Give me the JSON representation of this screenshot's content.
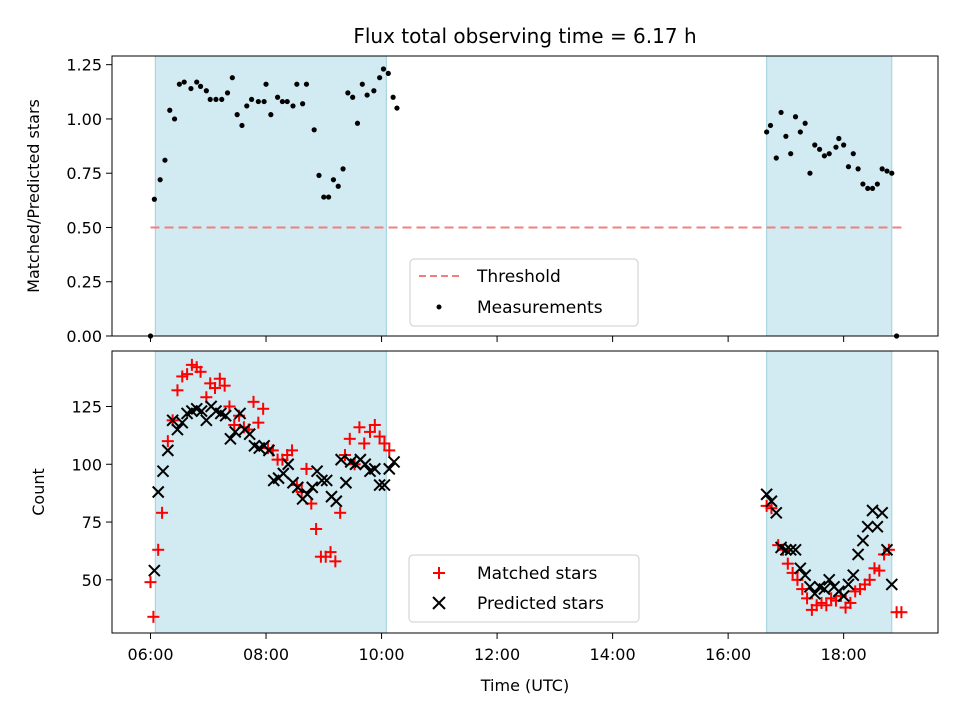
{
  "chart_data": [
    {
      "type": "scatter",
      "title": "Flux total observing time = 6.17 h",
      "xlabel": "",
      "ylabel": "Matched/Predicted stars",
      "xlim": [
        "05:20",
        "19:38"
      ],
      "ylim": [
        0,
        1.29
      ],
      "yticks": [
        0.0,
        0.25,
        0.5,
        0.75,
        1.0,
        1.25
      ],
      "yticklabels": [
        "0.00",
        "0.25",
        "0.50",
        "0.75",
        "1.00",
        "1.25"
      ],
      "shaded_intervals": [
        [
          "06:05",
          "10:05"
        ],
        [
          "16:40",
          "18:50"
        ]
      ],
      "threshold": {
        "name": "Threshold",
        "value": 0.5,
        "color": "#f08080"
      },
      "legend_placement": "lower-center",
      "series": [
        {
          "name": "Measurements",
          "color": "#000000",
          "marker": "dot",
          "points": [
            [
              "06:00",
              0.0
            ],
            [
              "06:04",
              0.63
            ],
            [
              "06:10",
              0.72
            ],
            [
              "06:15",
              0.81
            ],
            [
              "06:20",
              1.04
            ],
            [
              "06:25",
              1.0
            ],
            [
              "06:30",
              1.16
            ],
            [
              "06:35",
              1.17
            ],
            [
              "06:42",
              1.14
            ],
            [
              "06:48",
              1.17
            ],
            [
              "06:52",
              1.15
            ],
            [
              "06:58",
              1.13
            ],
            [
              "07:02",
              1.09
            ],
            [
              "07:08",
              1.09
            ],
            [
              "07:14",
              1.09
            ],
            [
              "07:20",
              1.12
            ],
            [
              "07:25",
              1.19
            ],
            [
              "07:30",
              1.02
            ],
            [
              "07:35",
              0.97
            ],
            [
              "07:40",
              1.06
            ],
            [
              "07:45",
              1.09
            ],
            [
              "07:52",
              1.08
            ],
            [
              "07:58",
              1.08
            ],
            [
              "08:00",
              1.16
            ],
            [
              "08:05",
              1.02
            ],
            [
              "08:12",
              1.1
            ],
            [
              "08:17",
              1.08
            ],
            [
              "08:22",
              1.08
            ],
            [
              "08:28",
              1.06
            ],
            [
              "08:32",
              1.16
            ],
            [
              "08:38",
              1.07
            ],
            [
              "08:42",
              1.16
            ],
            [
              "08:50",
              0.95
            ],
            [
              "08:55",
              0.74
            ],
            [
              "09:00",
              0.64
            ],
            [
              "09:05",
              0.64
            ],
            [
              "09:10",
              0.72
            ],
            [
              "09:15",
              0.69
            ],
            [
              "09:20",
              0.77
            ],
            [
              "09:25",
              1.12
            ],
            [
              "09:30",
              1.1
            ],
            [
              "09:35",
              0.98
            ],
            [
              "09:40",
              1.16
            ],
            [
              "09:45",
              1.11
            ],
            [
              "09:52",
              1.13
            ],
            [
              "09:58",
              1.19
            ],
            [
              "10:02",
              1.23
            ],
            [
              "10:07",
              1.21
            ],
            [
              "10:12",
              1.1
            ],
            [
              "10:16",
              1.05
            ],
            [
              "16:40",
              0.94
            ],
            [
              "16:44",
              0.97
            ],
            [
              "16:50",
              0.82
            ],
            [
              "16:55",
              1.03
            ],
            [
              "17:00",
              0.92
            ],
            [
              "17:05",
              0.84
            ],
            [
              "17:10",
              1.01
            ],
            [
              "17:15",
              0.94
            ],
            [
              "17:20",
              0.98
            ],
            [
              "17:25",
              0.75
            ],
            [
              "17:30",
              0.88
            ],
            [
              "17:35",
              0.86
            ],
            [
              "17:40",
              0.83
            ],
            [
              "17:45",
              0.84
            ],
            [
              "17:52",
              0.87
            ],
            [
              "17:55",
              0.91
            ],
            [
              "18:00",
              0.88
            ],
            [
              "18:05",
              0.78
            ],
            [
              "18:10",
              0.84
            ],
            [
              "18:15",
              0.77
            ],
            [
              "18:20",
              0.7
            ],
            [
              "18:25",
              0.68
            ],
            [
              "18:30",
              0.68
            ],
            [
              "18:35",
              0.7
            ],
            [
              "18:40",
              0.77
            ],
            [
              "18:45",
              0.76
            ],
            [
              "18:50",
              0.75
            ],
            [
              "18:55",
              0.0
            ]
          ]
        }
      ]
    },
    {
      "type": "scatter",
      "title": "",
      "xlabel": "Time (UTC)",
      "ylabel": "Count",
      "xlim": [
        "05:20",
        "19:38"
      ],
      "ylim": [
        27,
        149
      ],
      "yticks": [
        50,
        75,
        100,
        125
      ],
      "xticks": [
        "06:00",
        "08:00",
        "10:00",
        "12:00",
        "14:00",
        "16:00",
        "18:00"
      ],
      "shaded_intervals": [
        [
          "06:05",
          "10:05"
        ],
        [
          "16:40",
          "18:50"
        ]
      ],
      "legend_placement": "lower-center",
      "series": [
        {
          "name": "Matched stars",
          "color": "#ff0000",
          "marker": "plus",
          "points": [
            [
              "06:00",
              49
            ],
            [
              "06:03",
              34
            ],
            [
              "06:08",
              63
            ],
            [
              "06:12",
              79
            ],
            [
              "06:18",
              110
            ],
            [
              "06:23",
              119
            ],
            [
              "06:28",
              132
            ],
            [
              "06:33",
              138
            ],
            [
              "06:38",
              139
            ],
            [
              "06:43",
              143
            ],
            [
              "06:48",
              142
            ],
            [
              "06:52",
              140
            ],
            [
              "06:58",
              129
            ],
            [
              "07:02",
              135
            ],
            [
              "07:07",
              133
            ],
            [
              "07:12",
              137
            ],
            [
              "07:17",
              134
            ],
            [
              "07:22",
              125
            ],
            [
              "07:27",
              117
            ],
            [
              "07:32",
              121
            ],
            [
              "07:37",
              116
            ],
            [
              "07:42",
              115
            ],
            [
              "07:47",
              127
            ],
            [
              "07:52",
              118
            ],
            [
              "07:57",
              124
            ],
            [
              "08:02",
              107
            ],
            [
              "08:07",
              106
            ],
            [
              "08:12",
              102
            ],
            [
              "08:17",
              102
            ],
            [
              "08:22",
              104
            ],
            [
              "08:27",
              106
            ],
            [
              "08:32",
              91
            ],
            [
              "08:37",
              88
            ],
            [
              "08:42",
              98
            ],
            [
              "08:47",
              83
            ],
            [
              "08:52",
              72
            ],
            [
              "08:57",
              60
            ],
            [
              "09:02",
              60
            ],
            [
              "09:07",
              62
            ],
            [
              "09:12",
              58
            ],
            [
              "09:17",
              79
            ],
            [
              "09:22",
              104
            ],
            [
              "09:27",
              111
            ],
            [
              "09:32",
              100
            ],
            [
              "09:37",
              116
            ],
            [
              "09:42",
              109
            ],
            [
              "09:48",
              114
            ],
            [
              "09:53",
              117
            ],
            [
              "09:58",
              112
            ],
            [
              "10:03",
              109
            ],
            [
              "10:08",
              106
            ],
            [
              "16:40",
              82
            ],
            [
              "16:45",
              81
            ],
            [
              "16:52",
              65
            ],
            [
              "16:57",
              63
            ],
            [
              "17:02",
              57
            ],
            [
              "17:07",
              53
            ],
            [
              "17:12",
              50
            ],
            [
              "17:17",
              46
            ],
            [
              "17:22",
              42
            ],
            [
              "17:27",
              37
            ],
            [
              "17:32",
              39
            ],
            [
              "17:37",
              40
            ],
            [
              "17:42",
              39
            ],
            [
              "17:47",
              42
            ],
            [
              "17:52",
              41
            ],
            [
              "17:57",
              43
            ],
            [
              "18:02",
              38
            ],
            [
              "18:07",
              40
            ],
            [
              "18:12",
              45
            ],
            [
              "18:17",
              46
            ],
            [
              "18:22",
              48
            ],
            [
              "18:27",
              50
            ],
            [
              "18:32",
              55
            ],
            [
              "18:37",
              54
            ],
            [
              "18:42",
              61
            ],
            [
              "18:47",
              63
            ],
            [
              "18:55",
              36
            ],
            [
              "19:00",
              36
            ]
          ]
        },
        {
          "name": "Predicted stars",
          "color": "#000000",
          "marker": "x",
          "points": [
            [
              "06:04",
              54
            ],
            [
              "06:08",
              88
            ],
            [
              "06:13",
              97
            ],
            [
              "06:18",
              106
            ],
            [
              "06:23",
              119
            ],
            [
              "06:28",
              115
            ],
            [
              "06:33",
              118
            ],
            [
              "06:38",
              122
            ],
            [
              "06:43",
              123
            ],
            [
              "06:48",
              124
            ],
            [
              "06:53",
              123
            ],
            [
              "06:58",
              119
            ],
            [
              "07:03",
              125
            ],
            [
              "07:08",
              123
            ],
            [
              "07:13",
              122
            ],
            [
              "07:18",
              121
            ],
            [
              "07:23",
              111
            ],
            [
              "07:28",
              114
            ],
            [
              "07:33",
              122
            ],
            [
              "07:38",
              115
            ],
            [
              "07:43",
              113
            ],
            [
              "07:48",
              108
            ],
            [
              "07:53",
              107
            ],
            [
              "07:58",
              108
            ],
            [
              "08:03",
              106
            ],
            [
              "08:08",
              93
            ],
            [
              "08:13",
              94
            ],
            [
              "08:18",
              96
            ],
            [
              "08:23",
              100
            ],
            [
              "08:28",
              92
            ],
            [
              "08:33",
              90
            ],
            [
              "08:38",
              85
            ],
            [
              "08:43",
              87
            ],
            [
              "08:48",
              90
            ],
            [
              "08:53",
              97
            ],
            [
              "08:58",
              93
            ],
            [
              "09:03",
              93
            ],
            [
              "09:08",
              86
            ],
            [
              "09:13",
              84
            ],
            [
              "09:18",
              102
            ],
            [
              "09:23",
              92
            ],
            [
              "09:28",
              101
            ],
            [
              "09:33",
              100
            ],
            [
              "09:38",
              102
            ],
            [
              "09:43",
              100
            ],
            [
              "09:48",
              97
            ],
            [
              "09:53",
              98
            ],
            [
              "09:58",
              91
            ],
            [
              "10:03",
              91
            ],
            [
              "10:08",
              98
            ],
            [
              "10:13",
              101
            ],
            [
              "16:40",
              87
            ],
            [
              "16:45",
              84
            ],
            [
              "16:50",
              79
            ],
            [
              "16:55",
              64
            ],
            [
              "17:00",
              63
            ],
            [
              "17:05",
              63
            ],
            [
              "17:10",
              63
            ],
            [
              "17:15",
              55
            ],
            [
              "17:20",
              52
            ],
            [
              "17:25",
              47
            ],
            [
              "17:30",
              44
            ],
            [
              "17:35",
              47
            ],
            [
              "17:40",
              46
            ],
            [
              "17:45",
              50
            ],
            [
              "17:50",
              47
            ],
            [
              "17:55",
              45
            ],
            [
              "18:00",
              43
            ],
            [
              "18:05",
              48
            ],
            [
              "18:10",
              52
            ],
            [
              "18:15",
              61
            ],
            [
              "18:20",
              67
            ],
            [
              "18:25",
              73
            ],
            [
              "18:30",
              80
            ],
            [
              "18:35",
              73
            ],
            [
              "18:40",
              79
            ],
            [
              "18:45",
              63
            ],
            [
              "18:50",
              48
            ]
          ]
        }
      ]
    }
  ]
}
